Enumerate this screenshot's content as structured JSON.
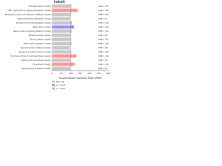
{
  "chart_data": {
    "type": "hbar",
    "title": "Industr",
    "x_label": "Proportionate Mortality Ratio (PMR)",
    "categories": [
      "Wholesale Trade Industry",
      "Misc. Equipment & Supplies Wholesale Industry",
      "Wholesale Lumber & Construction Material Industry",
      "Metals & Minerals Wholesale Industry",
      "Petroleum Products Wholesale Industry",
      "Retail Trade Industry",
      "Retail Lumber & Building Material Industry",
      "Hardware Stores Industry",
      "Grocery Stores Industry",
      "Motor Vehicle Dealers Industry",
      "Gasoline Service Stations Industry",
      "Apparel & Accessory Stores Industry",
      "Furniture & Home Furnishings Stores Industry",
      "Eating & Drinking Places Industry",
      "Drug Stores Industry",
      "Retail Nursery & Garden Industry"
    ],
    "values": [
      101,
      138,
      100,
      97,
      106,
      118,
      104,
      98,
      101,
      103,
      96,
      102,
      130,
      99,
      121,
      97
    ],
    "value_labels": [
      "PMR = 101",
      "PMR = 138",
      "PMR = 100",
      "PMR = 97",
      "PMR = 106",
      "PMR = 118",
      "PMR = 104",
      "PMR = 98",
      "PMR = 101",
      "PMR = 103",
      "PMR = 96",
      "PMR = 102",
      "PMR = 130",
      "PMR = 99",
      "PMR = 121",
      "PMR = 97"
    ],
    "colors": [
      "#c8c8c8",
      "#ff9999",
      "#c8c8c8",
      "#c8c8c8",
      "#c8c8c8",
      "#9999ff",
      "#c8c8c8",
      "#c8c8c8",
      "#c8c8c8",
      "#c8c8c8",
      "#c8c8c8",
      "#c8c8c8",
      "#ff9999",
      "#c8c8c8",
      "#ff9999",
      "#c8c8c8"
    ],
    "legend": [
      {
        "label": "Non-sig",
        "color": "#c8c8c8"
      },
      {
        "label": "p < 0.05",
        "color": "#9999ff"
      },
      {
        "label": "p < 0.01",
        "color": "#ff9999"
      }
    ],
    "xlim": [
      0,
      300
    ],
    "xticks": [
      0,
      50,
      100,
      150,
      200,
      250,
      300
    ]
  }
}
